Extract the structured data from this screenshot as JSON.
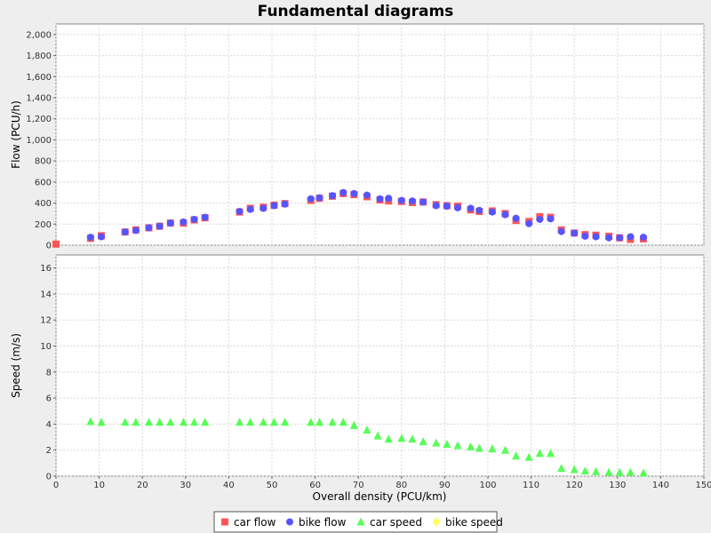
{
  "chart_data": {
    "type": "scatter",
    "title": "Fundamental diagrams",
    "xlabel": "Overall density (PCU/km)",
    "xlim": [
      0,
      150
    ],
    "x_ticks": [
      "0",
      "10",
      "20",
      "30",
      "40",
      "50",
      "60",
      "70",
      "80",
      "90",
      "100",
      "110",
      "120",
      "130",
      "140",
      "150"
    ],
    "grid": true,
    "legend_position": "bottom",
    "panels": [
      {
        "ylabel": "Flow (PCU/h)",
        "ylim": [
          0,
          2100
        ],
        "y_ticks": [
          "0",
          "200",
          "400",
          "600",
          "800",
          "1,000",
          "1,200",
          "1,400",
          "1,600",
          "1,800",
          "2,000"
        ],
        "series": [
          {
            "name": "car flow",
            "marker": "square",
            "color": "#ff5555",
            "x": [
              0,
              8,
              10.5,
              16,
              18.5,
              21.5,
              24,
              26.5,
              29.5,
              32,
              34.5,
              42.5,
              45,
              48,
              50.5,
              53,
              59,
              61,
              64,
              66.5,
              69,
              72,
              75,
              77,
              80,
              82.5,
              85,
              88,
              90.5,
              93,
              96,
              98,
              101,
              104,
              106.5,
              109.5,
              112,
              114.5,
              117,
              120,
              122.5,
              125,
              128,
              130.5,
              133,
              136
            ],
            "y": [
              10,
              65,
              90,
              125,
              145,
              165,
              180,
              210,
              210,
              240,
              260,
              315,
              350,
              360,
              380,
              395,
              425,
              445,
              465,
              490,
              480,
              460,
              430,
              420,
              415,
              405,
              410,
              385,
              375,
              370,
              335,
              320,
              325,
              300,
              235,
              225,
              270,
              265,
              145,
              115,
              100,
              95,
              85,
              70,
              55,
              60
            ]
          },
          {
            "name": "bike flow",
            "marker": "circle",
            "color": "#5555ff",
            "x": [
              8,
              10.5,
              16,
              18.5,
              21.5,
              24,
              26.5,
              29.5,
              32,
              34.5,
              42.5,
              45,
              48,
              50.5,
              53,
              59,
              61,
              64,
              66.5,
              69,
              72,
              75,
              77,
              80,
              82.5,
              85,
              88,
              90.5,
              93,
              96,
              98,
              101,
              104,
              106.5,
              109.5,
              112,
              114.5,
              117,
              120,
              122.5,
              125,
              128,
              130.5,
              133,
              136
            ],
            "y": [
              75,
              80,
              125,
              140,
              165,
              180,
              210,
              220,
              245,
              265,
              320,
              340,
              350,
              375,
              390,
              440,
              450,
              470,
              500,
              490,
              475,
              440,
              445,
              425,
              420,
              410,
              375,
              370,
              355,
              350,
              330,
              315,
              290,
              255,
              205,
              245,
              250,
              130,
              115,
              85,
              80,
              70,
              70,
              80,
              75
            ]
          }
        ]
      },
      {
        "ylabel": "Speed (m/s)",
        "ylim": [
          0,
          17
        ],
        "y_ticks": [
          "0",
          "2",
          "4",
          "6",
          "8",
          "10",
          "12",
          "14",
          "16"
        ],
        "series": [
          {
            "name": "car speed",
            "marker": "triangle",
            "color": "#55ff55",
            "x": [
              8,
              10.5,
              16,
              18.5,
              21.5,
              24,
              26.5,
              29.5,
              32,
              34.5,
              42.5,
              45,
              48,
              50.5,
              53,
              59,
              61,
              64,
              66.5,
              69,
              72,
              74.5,
              77,
              80,
              82.5,
              85,
              88,
              90.5,
              93,
              96,
              98,
              101,
              104,
              106.5,
              109.5,
              112,
              114.5,
              117,
              120,
              122.5,
              125,
              128,
              130.5,
              133,
              136
            ],
            "y": [
              4.2,
              4.15,
              4.15,
              4.15,
              4.15,
              4.15,
              4.15,
              4.15,
              4.15,
              4.15,
              4.15,
              4.15,
              4.15,
              4.15,
              4.15,
              4.15,
              4.15,
              4.15,
              4.15,
              3.9,
              3.55,
              3.1,
              2.85,
              2.9,
              2.85,
              2.65,
              2.55,
              2.45,
              2.35,
              2.25,
              2.15,
              2.1,
              2.0,
              1.55,
              1.45,
              1.75,
              1.75,
              0.6,
              0.5,
              0.4,
              0.35,
              0.3,
              0.3,
              0.3,
              0.25
            ]
          },
          {
            "name": "bike speed",
            "marker": "diamond",
            "color": "#ffff55",
            "x": [],
            "y": []
          }
        ]
      }
    ]
  }
}
